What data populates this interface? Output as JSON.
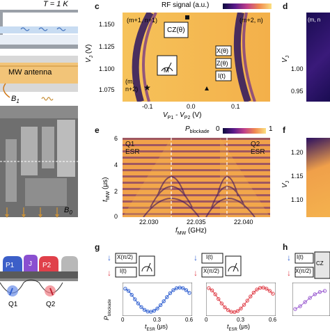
{
  "panel_a": {
    "temperature": "T = 1 K",
    "antenna_label": "MW antenna",
    "b1_label": "B",
    "b1_sub": "1",
    "b0_label": "B",
    "b0_sub": "0"
  },
  "panel_b": {
    "gates": [
      "P1",
      "J",
      "P2"
    ],
    "qubits": [
      "Q1",
      "Q2"
    ]
  },
  "panel_c": {
    "letter": "c",
    "colorbar_title": "RF signal (a.u.)",
    "ylabel": "V",
    "ylabel_sub": "J",
    "ylabel_unit": " (V)",
    "xlabel": "V",
    "xlabel_sub1": "P1",
    "xlabel_mid": " - V",
    "xlabel_sub2": "P2",
    "xlabel_unit": " (V)",
    "yticks": [
      "1.150",
      "1.125",
      "1.100",
      "1.075"
    ],
    "xticks": [
      "-0.1",
      "0.0",
      "0.1"
    ],
    "region_labels": [
      "(m+1, n+1)",
      "(m+2, n)",
      "(m,",
      "n+2)"
    ],
    "gates": [
      "CZ(θ)",
      "X(θ)",
      "Z(θ)",
      "I(t)",
      "M"
    ]
  },
  "panel_d": {
    "letter": "d",
    "yticks": [
      "1.00",
      "0.95"
    ],
    "ylabel": "V",
    "ylabel_sub": "J",
    "region_label": "(m, n"
  },
  "panel_e": {
    "letter": "e",
    "colorbar_title": "P",
    "colorbar_sub": "blockade",
    "colorbar_min": "0",
    "colorbar_max": "1",
    "ylabel": "t",
    "ylabel_sub": "MW",
    "ylabel_unit": " (μs)",
    "xlabel": "f",
    "xlabel_sub": "MW",
    "xlabel_unit": " (GHz)",
    "yticks": [
      "6",
      "4",
      "2",
      "0"
    ],
    "xticks": [
      "22.030",
      "22.035",
      "22.040"
    ],
    "q1": "Q1",
    "q1_sub": "ESR",
    "q2": "Q2",
    "q2_sub": "ESR"
  },
  "panel_f": {
    "letter": "f",
    "yticks": [
      "1.20",
      "1.15",
      "1.10"
    ],
    "ylabel": "V",
    "ylabel_sub": "J"
  },
  "panel_g": {
    "letter": "g",
    "ylabel": "P",
    "ylabel_sub": "blockade",
    "xlabel": "t",
    "xlabel_sub": "ESR",
    "xlabel_unit": " (μs)",
    "xticks_left": [
      "0",
      "0.3",
      "0.6"
    ],
    "xticks_right": [
      "0",
      "0.3",
      "0.6"
    ],
    "circuit1_top": "X(π/2)",
    "circuit1_bottom": "I(t)",
    "circuit2_top": "I(t)",
    "circuit2_bottom": "X(π/2)"
  },
  "panel_h": {
    "letter": "h",
    "circuit_top": "I(t)",
    "circuit_bottom": "X(π/2)",
    "cz": "CZ"
  },
  "chart_data": [
    {
      "type": "scatter",
      "panel": "g-left",
      "xlabel": "t_ESR (μs)",
      "ylabel": "P_blockade",
      "xlim": [
        0,
        0.6
      ],
      "ylim": [
        0,
        1
      ],
      "x": [
        0.0,
        0.03,
        0.06,
        0.09,
        0.12,
        0.15,
        0.18,
        0.21,
        0.24,
        0.27,
        0.3,
        0.33,
        0.36,
        0.39,
        0.42,
        0.45,
        0.48,
        0.51,
        0.54,
        0.57,
        0.6
      ],
      "y": [
        0.88,
        0.8,
        0.66,
        0.5,
        0.35,
        0.22,
        0.12,
        0.06,
        0.05,
        0.09,
        0.17,
        0.29,
        0.43,
        0.58,
        0.72,
        0.83,
        0.9,
        0.92,
        0.9,
        0.83,
        0.73
      ]
    },
    {
      "type": "scatter",
      "panel": "g-right",
      "xlabel": "t_ESR (μs)",
      "ylabel": "P_blockade",
      "xlim": [
        0,
        0.6
      ],
      "ylim": [
        0,
        1
      ],
      "x": [
        0.0,
        0.03,
        0.06,
        0.09,
        0.12,
        0.15,
        0.18,
        0.21,
        0.24,
        0.27,
        0.3,
        0.33,
        0.36,
        0.39,
        0.42,
        0.45,
        0.48,
        0.51,
        0.54,
        0.57,
        0.6
      ],
      "y": [
        0.9,
        0.82,
        0.68,
        0.51,
        0.35,
        0.21,
        0.11,
        0.05,
        0.04,
        0.08,
        0.17,
        0.3,
        0.45,
        0.6,
        0.74,
        0.85,
        0.91,
        0.92,
        0.88,
        0.8,
        0.7
      ]
    },
    {
      "type": "scatter",
      "panel": "h",
      "x": [
        0.0,
        0.04,
        0.08,
        0.12,
        0.16,
        0.2,
        0.24
      ],
      "y": [
        0.15,
        0.25,
        0.4,
        0.55,
        0.68,
        0.76,
        0.8
      ]
    }
  ],
  "colors": {
    "blue_spin": "#2f5fd0",
    "red_spin": "#e0404a",
    "purple_fit": "#9a5bd0",
    "antenna": "#f2c478",
    "gate_p": "#3c5fc8",
    "gate_j": "#8a4fd0"
  }
}
